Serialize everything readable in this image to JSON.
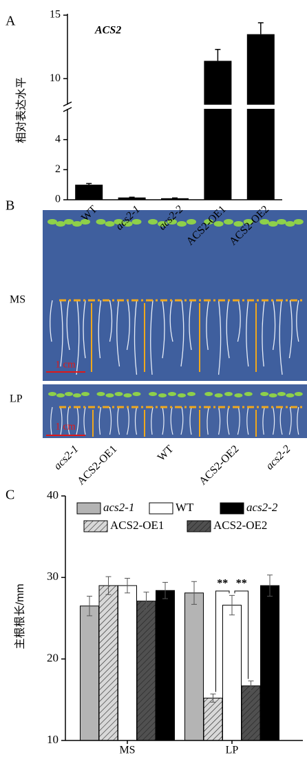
{
  "panel_labels": [
    "A",
    "B",
    "C"
  ],
  "chart_data": [
    {
      "type": "bar",
      "annotation": "ACS2",
      "ylabel": "相对表达水平",
      "categories": [
        "WT",
        "acs2-1",
        "acs2-2",
        "ACS2-OE1",
        "ACS2-OE2"
      ],
      "italic": [
        false,
        true,
        true,
        false,
        false
      ],
      "values": [
        1.0,
        0.15,
        0.1,
        11.4,
        13.5
      ],
      "errors": [
        0.08,
        0.02,
        0.02,
        0.9,
        0.9
      ],
      "color": "#000000",
      "ylim": [
        0,
        15
      ],
      "yticks": [
        0,
        2,
        4,
        10,
        15
      ],
      "axis_break": [
        6,
        8
      ]
    },
    {
      "type": "grouped_bar",
      "ylabel": "主根根长/mm",
      "categories": [
        "MS",
        "LP"
      ],
      "series": [
        {
          "name": "acs2-1",
          "color": "#b4b4b4",
          "hatch": false,
          "italic": true,
          "values": [
            26.5,
            28.1
          ],
          "errors": [
            1.2,
            1.4
          ]
        },
        {
          "name": "ACS2-OE1",
          "color": "#d8d8d8",
          "hatch": true,
          "italic": false,
          "values": [
            29.0,
            15.2
          ],
          "errors": [
            1.1,
            0.5
          ]
        },
        {
          "name": "WT",
          "color": "#ffffff",
          "hatch": false,
          "italic": false,
          "values": [
            29.0,
            26.6
          ],
          "errors": [
            0.9,
            1.2
          ]
        },
        {
          "name": "ACS2-OE2",
          "color": "#505050",
          "hatch": true,
          "italic": false,
          "values": [
            27.1,
            16.7
          ],
          "errors": [
            1.1,
            0.6
          ]
        },
        {
          "name": "acs2-2",
          "color": "#000000",
          "hatch": false,
          "italic": true,
          "values": [
            28.4,
            29.0
          ],
          "errors": [
            1.0,
            1.3
          ]
        }
      ],
      "ylim": [
        10,
        40
      ],
      "yticks": [
        10,
        20,
        30,
        40
      ],
      "annotations": [
        "**",
        "**"
      ],
      "legend": "top"
    }
  ],
  "photo": {
    "rows": [
      "MS",
      "LP"
    ],
    "scale_bar": "1 cm",
    "genotypes": [
      "acs2-1",
      "ACS2-OE1",
      "WT",
      "ACS2-OE2",
      "acs2-2"
    ],
    "italic": [
      true,
      false,
      false,
      false,
      true
    ]
  }
}
